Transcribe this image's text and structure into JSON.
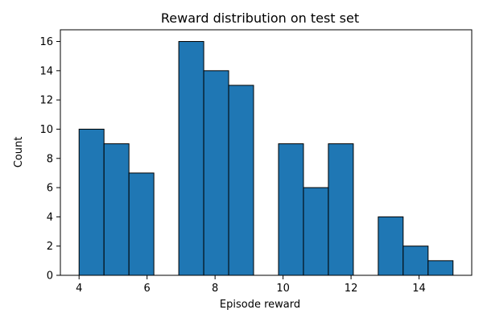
{
  "chart_data": {
    "type": "bar",
    "title": "Reward distribution on test set",
    "xlabel": "Episode reward",
    "ylabel": "Count",
    "xlim": [
      3.45,
      15.55
    ],
    "ylim": [
      0,
      16.8
    ],
    "xticks": [
      4,
      6,
      8,
      10,
      12,
      14
    ],
    "yticks": [
      0,
      2,
      4,
      6,
      8,
      10,
      12,
      14,
      16
    ],
    "grid": false,
    "bar_color": "#1f77b4",
    "edge_color": "#000000",
    "bins": [
      {
        "x0": 4.0,
        "x1": 4.733,
        "count": 10
      },
      {
        "x0": 4.733,
        "x1": 5.467,
        "count": 9
      },
      {
        "x0": 5.467,
        "x1": 6.2,
        "count": 7
      },
      {
        "x0": 6.2,
        "x1": 6.933,
        "count": 0
      },
      {
        "x0": 6.933,
        "x1": 7.667,
        "count": 16
      },
      {
        "x0": 7.667,
        "x1": 8.4,
        "count": 14
      },
      {
        "x0": 8.4,
        "x1": 9.133,
        "count": 13
      },
      {
        "x0": 9.133,
        "x1": 9.867,
        "count": 0
      },
      {
        "x0": 9.867,
        "x1": 10.6,
        "count": 9
      },
      {
        "x0": 10.6,
        "x1": 11.333,
        "count": 6
      },
      {
        "x0": 11.333,
        "x1": 12.067,
        "count": 9
      },
      {
        "x0": 12.067,
        "x1": 12.8,
        "count": 0
      },
      {
        "x0": 12.8,
        "x1": 13.533,
        "count": 4
      },
      {
        "x0": 13.533,
        "x1": 14.267,
        "count": 2
      },
      {
        "x0": 14.267,
        "x1": 15.0,
        "count": 1
      }
    ]
  }
}
